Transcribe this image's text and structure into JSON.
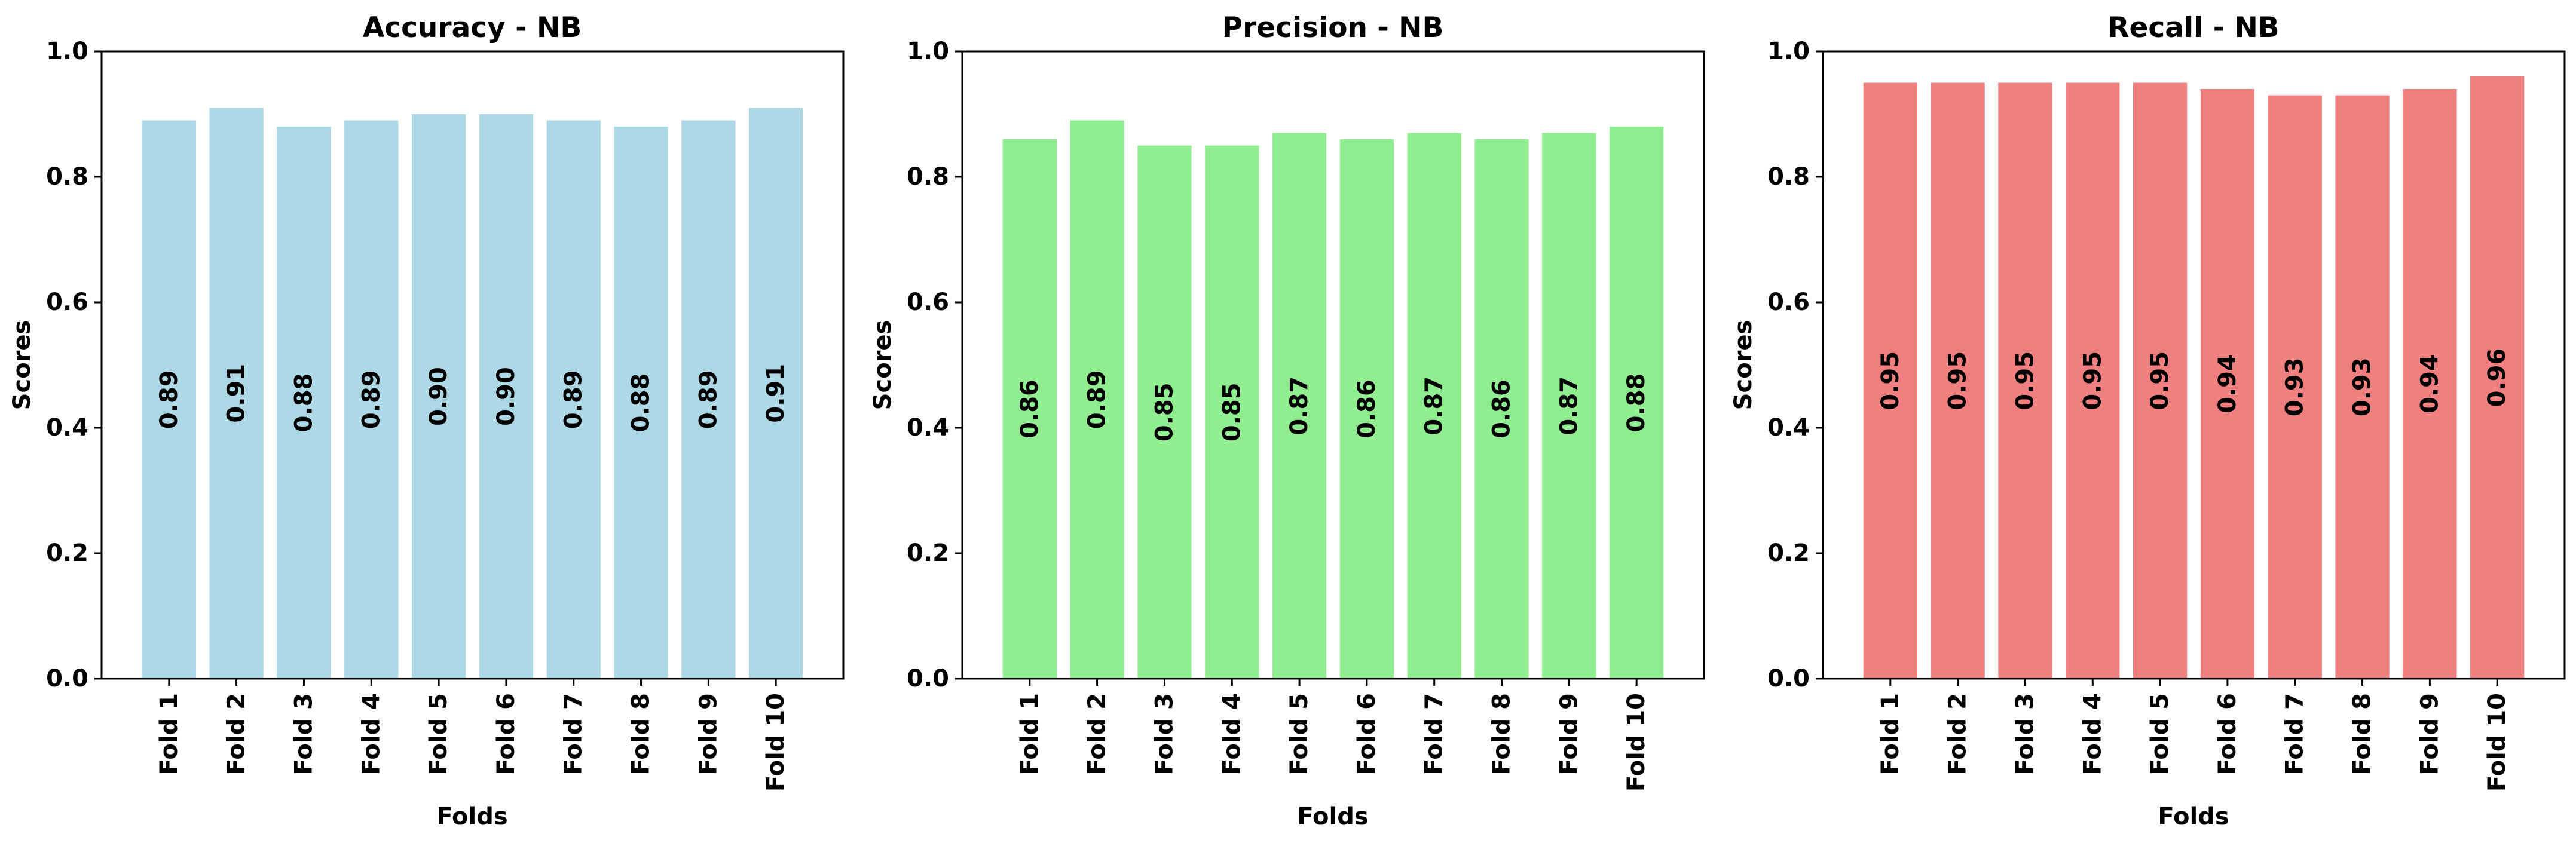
{
  "chart_data": [
    {
      "type": "bar",
      "title": "Accuracy - NB",
      "xlabel": "Folds",
      "ylabel": "Scores",
      "ylim": [
        0,
        1.0
      ],
      "yticks": [
        "0.0",
        "0.2",
        "0.4",
        "0.6",
        "0.8",
        "1.0"
      ],
      "categories": [
        "Fold 1",
        "Fold 2",
        "Fold 3",
        "Fold 4",
        "Fold 5",
        "Fold 6",
        "Fold 7",
        "Fold 8",
        "Fold 9",
        "Fold 10"
      ],
      "values": [
        0.89,
        0.91,
        0.88,
        0.89,
        0.9,
        0.9,
        0.89,
        0.88,
        0.89,
        0.91
      ],
      "value_labels": [
        "0.89",
        "0.91",
        "0.88",
        "0.89",
        "0.90",
        "0.90",
        "0.89",
        "0.88",
        "0.89",
        "0.91"
      ],
      "color": "#add8e6",
      "grid": false
    },
    {
      "type": "bar",
      "title": "Precision - NB",
      "xlabel": "Folds",
      "ylabel": "Scores",
      "ylim": [
        0,
        1.0
      ],
      "yticks": [
        "0.0",
        "0.2",
        "0.4",
        "0.6",
        "0.8",
        "1.0"
      ],
      "categories": [
        "Fold 1",
        "Fold 2",
        "Fold 3",
        "Fold 4",
        "Fold 5",
        "Fold 6",
        "Fold 7",
        "Fold 8",
        "Fold 9",
        "Fold 10"
      ],
      "values": [
        0.86,
        0.89,
        0.85,
        0.85,
        0.87,
        0.86,
        0.87,
        0.86,
        0.87,
        0.88
      ],
      "value_labels": [
        "0.86",
        "0.89",
        "0.85",
        "0.85",
        "0.87",
        "0.86",
        "0.87",
        "0.86",
        "0.87",
        "0.88"
      ],
      "color": "#90ee90",
      "grid": false
    },
    {
      "type": "bar",
      "title": "Recall - NB",
      "xlabel": "Folds",
      "ylabel": "Scores",
      "ylim": [
        0,
        1.0
      ],
      "yticks": [
        "0.0",
        "0.2",
        "0.4",
        "0.6",
        "0.8",
        "1.0"
      ],
      "categories": [
        "Fold 1",
        "Fold 2",
        "Fold 3",
        "Fold 4",
        "Fold 5",
        "Fold 6",
        "Fold 7",
        "Fold 8",
        "Fold 9",
        "Fold 10"
      ],
      "values": [
        0.95,
        0.95,
        0.95,
        0.95,
        0.95,
        0.94,
        0.93,
        0.93,
        0.94,
        0.96
      ],
      "value_labels": [
        "0.95",
        "0.95",
        "0.95",
        "0.95",
        "0.95",
        "0.94",
        "0.93",
        "0.93",
        "0.94",
        "0.96"
      ],
      "color": "#f08080",
      "grid": false
    }
  ]
}
